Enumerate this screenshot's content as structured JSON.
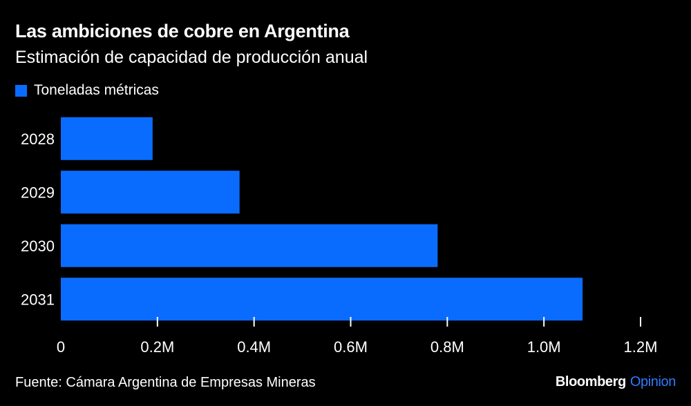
{
  "header": {
    "title": "Las ambiciones de cobre en Argentina",
    "subtitle": "Estimación de capacidad de producción anual"
  },
  "footer": {
    "source": "Fuente: Cámara Argentina de Empresas Mineras",
    "brand_name": "Bloomberg",
    "brand_suffix": "Opinion"
  },
  "colors": {
    "bar": "#0a6cff",
    "brand_accent": "#2f7bff",
    "background": "#000000",
    "text": "#ffffff"
  },
  "chart_data": {
    "type": "bar",
    "orientation": "horizontal",
    "title": "Las ambiciones de cobre en Argentina",
    "subtitle": "Estimación de capacidad de producción anual",
    "categories": [
      "2028",
      "2029",
      "2030",
      "2031"
    ],
    "series": [
      {
        "name": "Toneladas métricas",
        "values": [
          190000,
          370000,
          780000,
          1080000
        ]
      }
    ],
    "xlim": [
      0,
      1200000
    ],
    "x_ticks": [
      0,
      200000,
      400000,
      600000,
      800000,
      1000000,
      1200000
    ],
    "x_tick_labels": [
      "0",
      "0.2M",
      "0.4M",
      "0.6M",
      "0.8M",
      "1.0M",
      "1.2M"
    ],
    "xlabel": "",
    "ylabel": "",
    "grid": false,
    "legend_position": "top-left"
  }
}
